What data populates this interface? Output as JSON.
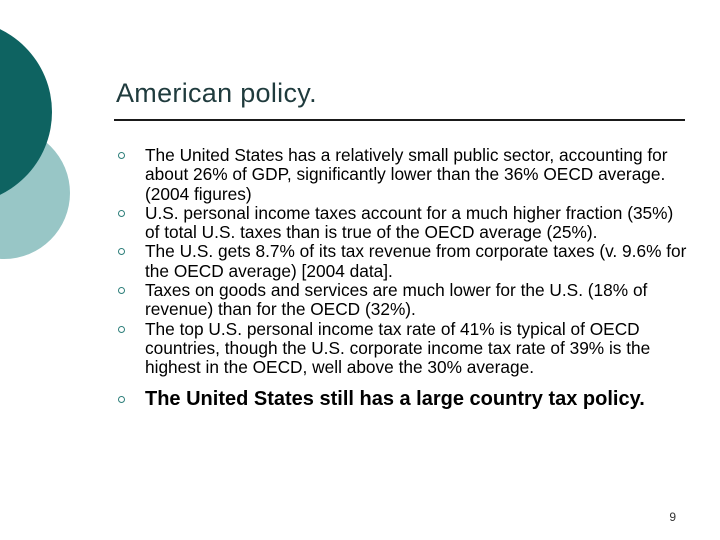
{
  "slide": {
    "title": "American policy.",
    "bullets": [
      "The United States has a relatively small public sector, accounting for about 26% of GDP, significantly lower than the 36% OECD average. (2004 figures)",
      "U.S. personal income taxes account for a much higher fraction (35%) of total U.S. taxes than is true of the OECD average (25%).",
      "The U.S. gets 8.7% of its tax revenue from corporate taxes (v. 9.6% for the OECD average) [2004 data].",
      "Taxes on goods and services are much lower for the U.S. (18% of revenue) than for the OECD (32%).",
      "The top U.S. personal income tax rate of 41% is typical of OECD countries, though the U.S. corporate income tax rate of 39% is the highest in the OECD, well above the 30% average.",
      "The United States still has a large country tax policy."
    ],
    "page_number": "9"
  },
  "colors": {
    "decor_dark": "#0e6361",
    "decor_light": "#98c6c6",
    "bullet_marker": "#2e7f7a",
    "title_text": "#1f3b3d"
  },
  "icons": {
    "bullet": "hollow-circle-bullet-icon"
  }
}
